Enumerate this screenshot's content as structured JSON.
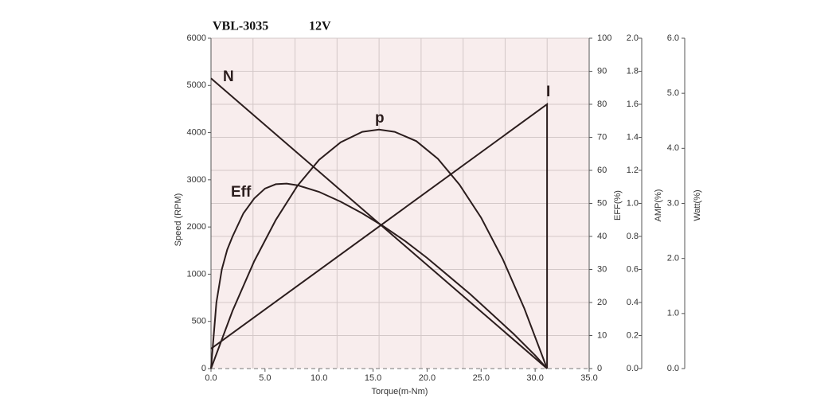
{
  "chart_data": {
    "type": "line",
    "title": "VBL-3035",
    "subtitle": "12V",
    "xlabel": "Torque(m-Nm)",
    "ylabel": "Speed (RPM)",
    "y2label": "EFF(%)",
    "y3label": "AMP(%)",
    "y4label": "Watt(%)",
    "xlim": [
      0,
      35
    ],
    "xticks": [
      {
        "value": 0,
        "label": "0.0"
      },
      {
        "value": 5,
        "label": "5.0"
      },
      {
        "value": 10,
        "label": "10.0"
      },
      {
        "value": 15,
        "label": "15.0"
      },
      {
        "value": 20,
        "label": "20.0"
      },
      {
        "value": 25,
        "label": "25.0"
      },
      {
        "value": 30,
        "label": "30.0"
      },
      {
        "value": 35,
        "label": "35.0"
      }
    ],
    "ylim": [
      0,
      6000
    ],
    "yticks": [
      0,
      500,
      1000,
      2000,
      3000,
      4000,
      5000,
      6000
    ],
    "y2lim": [
      0,
      100
    ],
    "y2ticks": [
      0,
      10,
      20,
      30,
      40,
      50,
      60,
      70,
      80,
      90,
      100
    ],
    "y3lim": [
      0,
      2
    ],
    "y3ticks": [
      {
        "value": 0,
        "label": "0.0"
      },
      {
        "value": 0.2,
        "label": "0.2"
      },
      {
        "value": 0.4,
        "label": "0.4"
      },
      {
        "value": 0.6,
        "label": "0.6"
      },
      {
        "value": 0.8,
        "label": "0.8"
      },
      {
        "value": 1,
        "label": "1.0"
      },
      {
        "value": 1.2,
        "label": "1.2"
      },
      {
        "value": 1.4,
        "label": "1.4"
      },
      {
        "value": 1.6,
        "label": "1.6"
      },
      {
        "value": 1.8,
        "label": "1.8"
      },
      {
        "value": 2,
        "label": "2.0"
      }
    ],
    "y4lim": [
      0,
      6
    ],
    "y4ticks": [
      {
        "value": 0,
        "label": "0.0"
      },
      {
        "value": 1,
        "label": "1.0"
      },
      {
        "value": 2,
        "label": "2.0"
      },
      {
        "value": 3,
        "label": "3.0"
      },
      {
        "value": 4,
        "label": "4.0"
      },
      {
        "value": 5,
        "label": "5.0"
      },
      {
        "value": 6,
        "label": "6.0"
      }
    ],
    "grid": true,
    "series": [
      {
        "name": "N",
        "color": "#2b1d1d",
        "axis": "y",
        "x": [
          0,
          31.1
        ],
        "values": [
          5150,
          0
        ]
      },
      {
        "name": "Eff",
        "color": "#2b1d1d",
        "axis": "y2",
        "x": [
          0,
          0.5,
          1,
          1.5,
          2,
          3,
          4,
          5,
          6,
          7,
          8,
          10,
          12,
          14,
          16,
          18,
          20,
          22,
          24,
          26,
          28,
          30,
          31.1
        ],
        "values": [
          0,
          20,
          30,
          36,
          40,
          47,
          51.5,
          54.5,
          55.8,
          56,
          55.5,
          53.5,
          50.5,
          47,
          43,
          38.5,
          33.5,
          28,
          22.5,
          16.5,
          10.5,
          4,
          0
        ]
      },
      {
        "name": "p",
        "color": "#2b1d1d",
        "axis": "y4",
        "x": [
          0,
          2,
          4,
          6,
          8,
          10,
          12,
          14,
          15.55,
          17,
          19,
          21,
          23,
          25,
          27,
          29,
          31.1
        ],
        "values": [
          0,
          1.05,
          1.95,
          2.7,
          3.32,
          3.79,
          4.11,
          4.3,
          4.34,
          4.3,
          4.13,
          3.81,
          3.34,
          2.74,
          1.99,
          1.09,
          0
        ]
      },
      {
        "name": "I",
        "color": "#2b1d1d",
        "axis": "y3",
        "x": [
          0,
          31.1,
          31.1
        ],
        "values": [
          0.12,
          1.6,
          0
        ]
      }
    ]
  }
}
